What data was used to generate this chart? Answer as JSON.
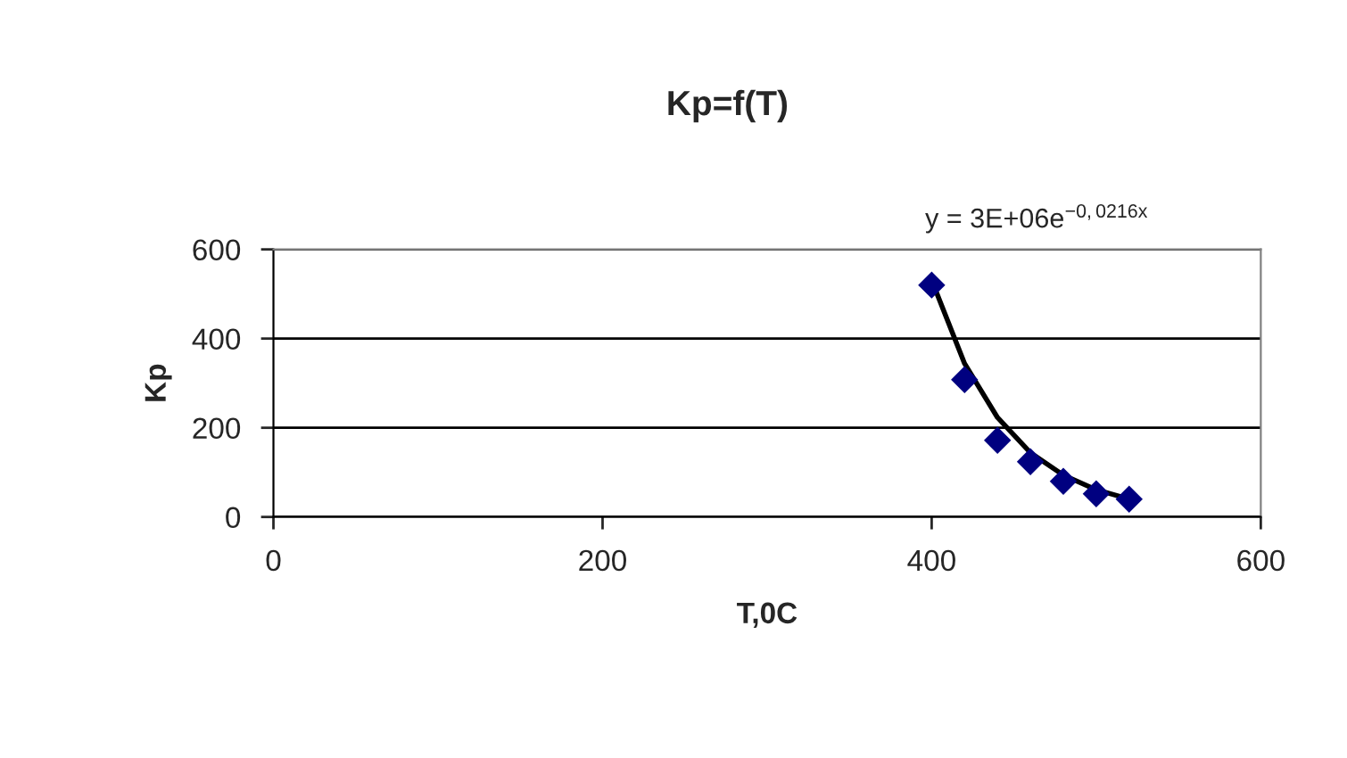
{
  "chart_data": {
    "type": "scatter",
    "title": "Kp=f(T)",
    "xlabel": "T,0C",
    "ylabel": "Kp",
    "annotations": [
      "y = 3E+06e$^{−0,0216x}$"
    ],
    "series": [
      {
        "color": "#000080",
        "marker": "diamond",
        "x": [
          400,
          420,
          440,
          460,
          480,
          500,
          520
        ],
        "values": [
          520,
          308,
          172,
          124,
          80,
          52,
          40
        ]
      },
      {
        "type": "line",
        "color": "#000000",
        "line_style": "solid",
        "marker": "none",
        "x": [
          400,
          420,
          440,
          460,
          480,
          500,
          520
        ],
        "values": [
          531,
          344,
          223,
          144,
          94,
          61,
          40
        ]
      }
    ],
    "xlim": [
      0,
      600
    ],
    "xticks": [
      0,
      200,
      400,
      600
    ],
    "ylim": [
      0,
      600
    ],
    "yticks": [
      0,
      200,
      400,
      600
    ],
    "grid": "y",
    "legend": false
  }
}
